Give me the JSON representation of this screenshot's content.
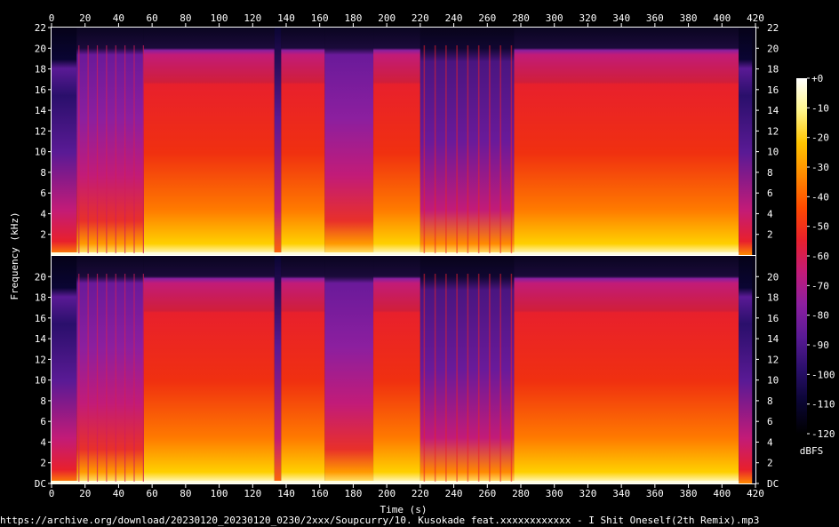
{
  "chart_data": {
    "type": "heatmap",
    "title": "",
    "xlabel": "Time (s)",
    "ylabel": "Frequency (kHz)",
    "x_ticks": [
      0,
      20,
      40,
      60,
      80,
      100,
      120,
      140,
      160,
      180,
      200,
      220,
      240,
      260,
      280,
      300,
      320,
      340,
      360,
      380,
      400,
      420
    ],
    "xlim": [
      0,
      420
    ],
    "y_ticks_top": [
      "2",
      "4",
      "6",
      "8",
      "10",
      "12",
      "14",
      "16",
      "18",
      "20",
      "22"
    ],
    "y_ticks_bottom": [
      "DC",
      "2",
      "4",
      "6",
      "8",
      "10",
      "12",
      "14",
      "16",
      "18",
      "20"
    ],
    "ylim_khz": [
      0,
      22
    ],
    "channels": [
      "left",
      "right"
    ],
    "colorbar": {
      "label": "dBFS",
      "ticks": [
        "+0",
        "-10",
        "-20",
        "-30",
        "-40",
        "-50",
        "-60",
        "-70",
        "-80",
        "-90",
        "-100",
        "-110",
        "-120"
      ],
      "range_db": [
        -120,
        0
      ]
    },
    "colormap": [
      "#000000",
      "#0a0533",
      "#2a0f6b",
      "#5a1a95",
      "#8c1f9f",
      "#c21b78",
      "#e8202c",
      "#ff4a00",
      "#ff8a00",
      "#ffc400",
      "#fff58a",
      "#ffffff"
    ],
    "segments": [
      {
        "t0": 0,
        "t1": 15,
        "level": "quiet-intro",
        "cutoff_khz": 18.5
      },
      {
        "t0": 15,
        "t1": 55,
        "level": "mid",
        "cutoff_khz": 20
      },
      {
        "t0": 55,
        "t1": 133,
        "level": "loud",
        "cutoff_khz": 20
      },
      {
        "t0": 133,
        "t1": 137,
        "level": "dip",
        "cutoff_khz": 20
      },
      {
        "t0": 137,
        "t1": 163,
        "level": "loud",
        "cutoff_khz": 20
      },
      {
        "t0": 163,
        "t1": 192,
        "level": "mid",
        "cutoff_khz": 20
      },
      {
        "t0": 192,
        "t1": 220,
        "level": "loud",
        "cutoff_khz": 20
      },
      {
        "t0": 220,
        "t1": 276,
        "level": "mid-sparse",
        "cutoff_khz": 20
      },
      {
        "t0": 276,
        "t1": 410,
        "level": "loud",
        "cutoff_khz": 20
      },
      {
        "t0": 410,
        "t1": 418,
        "level": "quiet-outro",
        "cutoff_khz": 18
      }
    ]
  },
  "caption": "https://archive.org/download/20230120_20230120_0230/2xxx/Soupcurry/10. Kusokade feat.xxxxxxxxxxxx - I Shit Oneself(2th Remix).mp3"
}
